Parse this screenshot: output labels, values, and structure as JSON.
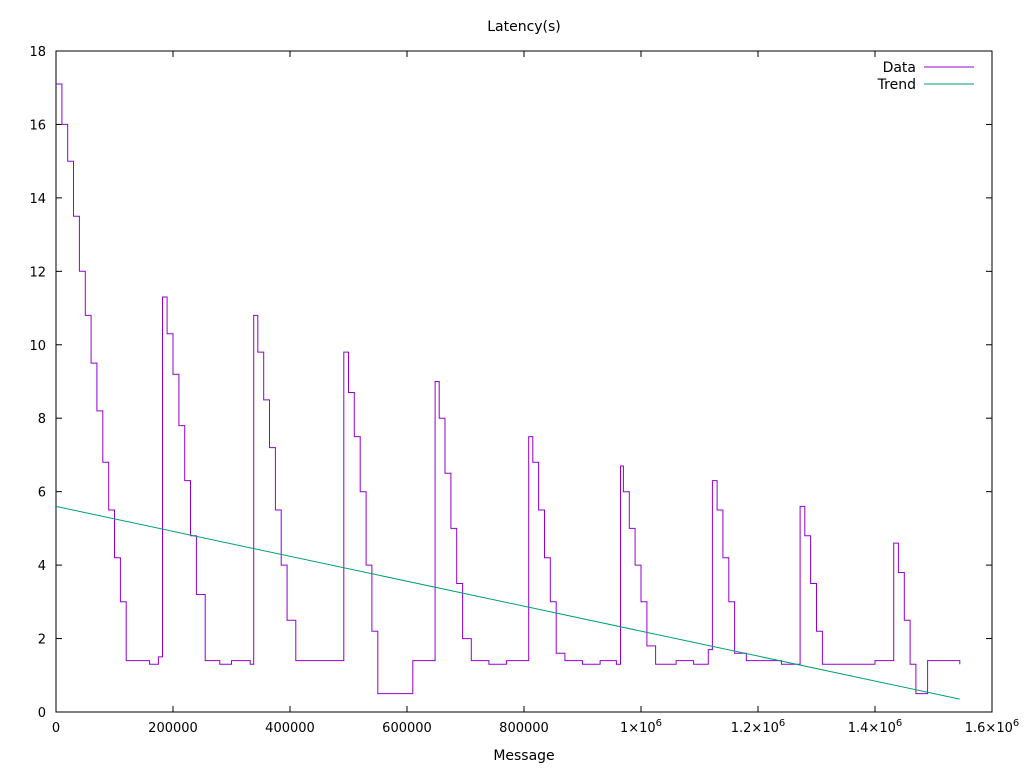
{
  "chart_data": {
    "type": "line",
    "title": "Latency(s)",
    "xlabel": "Message",
    "ylabel": "",
    "xlim": [
      0,
      1600000
    ],
    "ylim": [
      0,
      18
    ],
    "x_ticks": [
      {
        "value": 0,
        "label": "0"
      },
      {
        "value": 200000,
        "label": "200000"
      },
      {
        "value": 400000,
        "label": "400000"
      },
      {
        "value": 600000,
        "label": "600000"
      },
      {
        "value": 800000,
        "label": "800000"
      },
      {
        "value": 1000000,
        "label": "1×10",
        "exp": "6"
      },
      {
        "value": 1200000,
        "label": "1.2×10",
        "exp": "6"
      },
      {
        "value": 1400000,
        "label": "1.4×10",
        "exp": "6"
      },
      {
        "value": 1600000,
        "label": "1.6×10",
        "exp": "6"
      }
    ],
    "y_ticks": [
      0,
      2,
      4,
      6,
      8,
      10,
      12,
      14,
      16,
      18
    ],
    "grid": false,
    "legend_position": "top-right",
    "colors": {
      "data": "#9400d3",
      "trend": "#009e73"
    },
    "series": [
      {
        "name": "Data",
        "color": "#9400d3",
        "x": [
          0,
          10000,
          20000,
          30000,
          40000,
          50000,
          60000,
          70000,
          80000,
          90000,
          100000,
          110000,
          120000,
          140000,
          160000,
          175000,
          182000,
          190000,
          200000,
          210000,
          220000,
          230000,
          240000,
          255000,
          280000,
          300000,
          320000,
          332000,
          338000,
          345000,
          355000,
          365000,
          375000,
          385000,
          395000,
          410000,
          440000,
          470000,
          485000,
          492000,
          500000,
          510000,
          520000,
          530000,
          540000,
          550000,
          580000,
          610000,
          640000,
          648000,
          655000,
          665000,
          675000,
          685000,
          695000,
          710000,
          740000,
          770000,
          800000,
          808000,
          815000,
          825000,
          835000,
          845000,
          855000,
          870000,
          900000,
          930000,
          958000,
          965000,
          970000,
          980000,
          990000,
          1000000,
          1010000,
          1025000,
          1060000,
          1090000,
          1115000,
          1122000,
          1130000,
          1140000,
          1150000,
          1160000,
          1180000,
          1210000,
          1240000,
          1265000,
          1272000,
          1280000,
          1290000,
          1300000,
          1310000,
          1340000,
          1370000,
          1400000,
          1425000,
          1432000,
          1440000,
          1450000,
          1460000,
          1470000,
          1490000,
          1520000,
          1545000
        ],
        "y": [
          17.1,
          16.0,
          15.0,
          13.5,
          12.0,
          10.8,
          9.5,
          8.2,
          6.8,
          5.5,
          4.2,
          3.0,
          1.4,
          1.4,
          1.3,
          1.5,
          11.3,
          10.3,
          9.2,
          7.8,
          6.3,
          4.8,
          3.2,
          1.4,
          1.3,
          1.4,
          1.4,
          1.3,
          10.8,
          9.8,
          8.5,
          7.2,
          5.5,
          4.0,
          2.5,
          1.4,
          1.4,
          1.4,
          1.4,
          9.8,
          8.7,
          7.5,
          6.0,
          4.0,
          2.2,
          0.5,
          0.5,
          1.4,
          1.4,
          9.0,
          8.0,
          6.5,
          5.0,
          3.5,
          2.0,
          1.4,
          1.3,
          1.4,
          1.4,
          7.5,
          6.8,
          5.5,
          4.2,
          3.0,
          1.6,
          1.4,
          1.3,
          1.4,
          1.3,
          6.7,
          6.0,
          5.0,
          4.0,
          3.0,
          1.8,
          1.3,
          1.4,
          1.3,
          1.7,
          6.3,
          5.5,
          4.2,
          3.0,
          1.6,
          1.4,
          1.4,
          1.3,
          1.3,
          5.6,
          4.8,
          3.5,
          2.2,
          1.3,
          1.3,
          1.3,
          1.4,
          1.4,
          4.6,
          3.8,
          2.5,
          1.3,
          0.5,
          1.4,
          1.4,
          1.3
        ]
      },
      {
        "name": "Trend",
        "color": "#009e73",
        "x": [
          0,
          1545000
        ],
        "y": [
          5.6,
          0.35
        ]
      }
    ]
  }
}
